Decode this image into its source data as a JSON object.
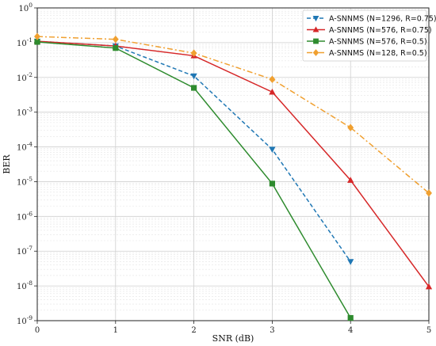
{
  "chart_data": {
    "type": "line",
    "title": "",
    "xlabel": "SNR (dB)",
    "ylabel": "BER",
    "x_ticks": [
      "0",
      "1",
      "2",
      "3",
      "4",
      "5"
    ],
    "y_ticks": [
      {
        "base": "10",
        "exp": "0"
      },
      {
        "base": "10",
        "exp": "-1"
      },
      {
        "base": "10",
        "exp": "-2"
      },
      {
        "base": "10",
        "exp": "-3"
      },
      {
        "base": "10",
        "exp": "-4"
      },
      {
        "base": "10",
        "exp": "-5"
      },
      {
        "base": "10",
        "exp": "-6"
      },
      {
        "base": "10",
        "exp": "-7"
      },
      {
        "base": "10",
        "exp": "-8"
      },
      {
        "base": "10",
        "exp": "-9"
      }
    ],
    "xlim": [
      0,
      5
    ],
    "ylim": [
      1e-09,
      1
    ],
    "yscale": "log",
    "grid": true,
    "legend_position": "top-right",
    "series": [
      {
        "name": "A-SNNMS (N=1296, R=0.75)",
        "color": "#1f77b4",
        "marker": "triangle-down",
        "linestyle": "dashed",
        "x": [
          0,
          1,
          2,
          3,
          4
        ],
        "y": [
          0.11,
          0.08,
          0.011,
          8.5e-05,
          5e-08
        ]
      },
      {
        "name": "A-SNNMS (N=576, R=0.75)",
        "color": "#d62728",
        "marker": "triangle-up",
        "linestyle": "solid",
        "x": [
          0,
          1,
          2,
          3,
          4,
          5
        ],
        "y": [
          0.11,
          0.08,
          0.042,
          0.0038,
          1.1e-05,
          9.5e-09
        ]
      },
      {
        "name": "A-SNNMS (N=576, R=0.5)",
        "color": "#2e8b2e",
        "marker": "square",
        "linestyle": "solid",
        "x": [
          0,
          1,
          2,
          3,
          4
        ],
        "y": [
          0.105,
          0.07,
          0.005,
          8.8e-06,
          1.2e-09
        ]
      },
      {
        "name": "A-SNNMS (N=128, R=0.5)",
        "color": "#f0a030",
        "marker": "diamond",
        "linestyle": "dashdot",
        "x": [
          0,
          1,
          2,
          3,
          4,
          5
        ],
        "y": [
          0.15,
          0.125,
          0.05,
          0.0088,
          0.00036,
          4.7e-06
        ]
      }
    ]
  }
}
